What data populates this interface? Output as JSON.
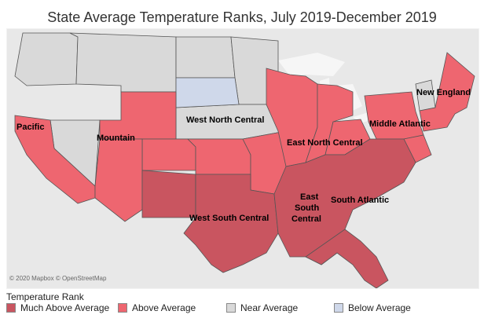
{
  "title": "State Average Temperature Ranks, July 2019-December 2019",
  "attribution": "© 2020 Mapbox © OpenStreetMap",
  "legend": {
    "title": "Temperature Rank",
    "items": [
      {
        "label": "Much Above Average",
        "color": "#c95560"
      },
      {
        "label": "Above Average",
        "color": "#ee6670"
      },
      {
        "label": "Near Average",
        "color": "#d9d9d9"
      },
      {
        "label": "Below Average",
        "color": "#cfd8ea"
      }
    ]
  },
  "regions": [
    {
      "name": "Pacific",
      "rank": "Above Average"
    },
    {
      "name": "Mountain",
      "rank": "Above Average"
    },
    {
      "name": "West North Central",
      "rank": "Near Average"
    },
    {
      "name": "East North Central",
      "rank": "Above Average"
    },
    {
      "name": "Middle Atlantic",
      "rank": "Above Average"
    },
    {
      "name": "New England",
      "rank": "Above Average"
    },
    {
      "name": "West South Central",
      "rank": "Much Above Average"
    },
    {
      "name": "East South Central",
      "rank": "Much Above Average"
    },
    {
      "name": "South Atlantic",
      "rank": "Much Above Average"
    }
  ],
  "labels": {
    "pacific": "Pacific",
    "mountain": "Mountain",
    "west_north_central": "West North Central",
    "east_north_central": "East North Central",
    "middle_atlantic": "Middle Atlantic",
    "new_england": "New England",
    "west_south_central": "West South Central",
    "east_south_central_1": "East",
    "east_south_central_2": "South",
    "east_south_central_3": "Central",
    "south_atlantic": "South Atlantic"
  }
}
